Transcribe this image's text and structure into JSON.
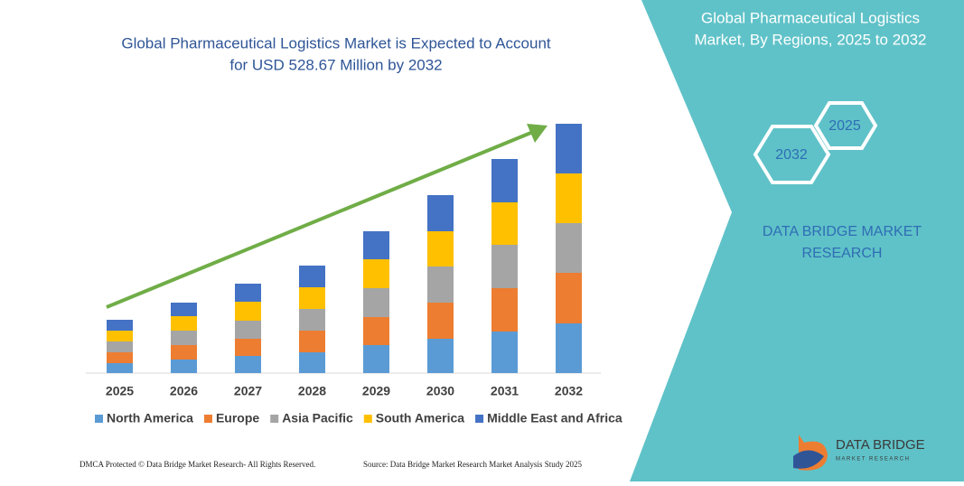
{
  "chart_data": {
    "type": "stacked-bar",
    "title": [
      "Global Pharmaceutical Logistics Market is Expected to Account",
      "for USD 528.67 Million by 2032"
    ],
    "categories": [
      "2025",
      "2026",
      "2027",
      "2028",
      "2029",
      "2030",
      "2031",
      "2032"
    ],
    "series": [
      {
        "name": "North America",
        "color": "#5b9bd5",
        "values": [
          11,
          15,
          19,
          23,
          31,
          38,
          46,
          55
        ]
      },
      {
        "name": "Europe",
        "color": "#ed7d31",
        "values": [
          12,
          16,
          19,
          24,
          31,
          40,
          48,
          56
        ]
      },
      {
        "name": "Asia Pacific",
        "color": "#a5a5a5",
        "values": [
          12,
          16,
          20,
          24,
          32,
          40,
          48,
          55
        ]
      },
      {
        "name": "South America",
        "color": "#ffc000",
        "values": [
          12,
          16,
          21,
          24,
          32,
          39,
          47,
          55
        ]
      },
      {
        "name": "Middle East and Africa",
        "color": "#4472c4",
        "values": [
          12,
          15,
          20,
          24,
          31,
          40,
          48,
          55
        ]
      }
    ],
    "ylim": [
      0,
      280
    ]
  },
  "panel": {
    "title": [
      "Global Pharmaceutical Logistics",
      "Market, By Regions, 2025 to 2032"
    ],
    "hexagons": [
      "2032",
      "2025"
    ],
    "brand": [
      "DATA BRIDGE MARKET",
      "RESEARCH"
    ]
  },
  "logo": {
    "name": "DATA BRIDGE",
    "tagline": "MARKET RESEARCH"
  },
  "footer": {
    "left": "DMCA Protected © Data Bridge Market Research- All Rights Reserved.",
    "right": "Source: Data Bridge Market Research Market Analysis Study 2025"
  }
}
